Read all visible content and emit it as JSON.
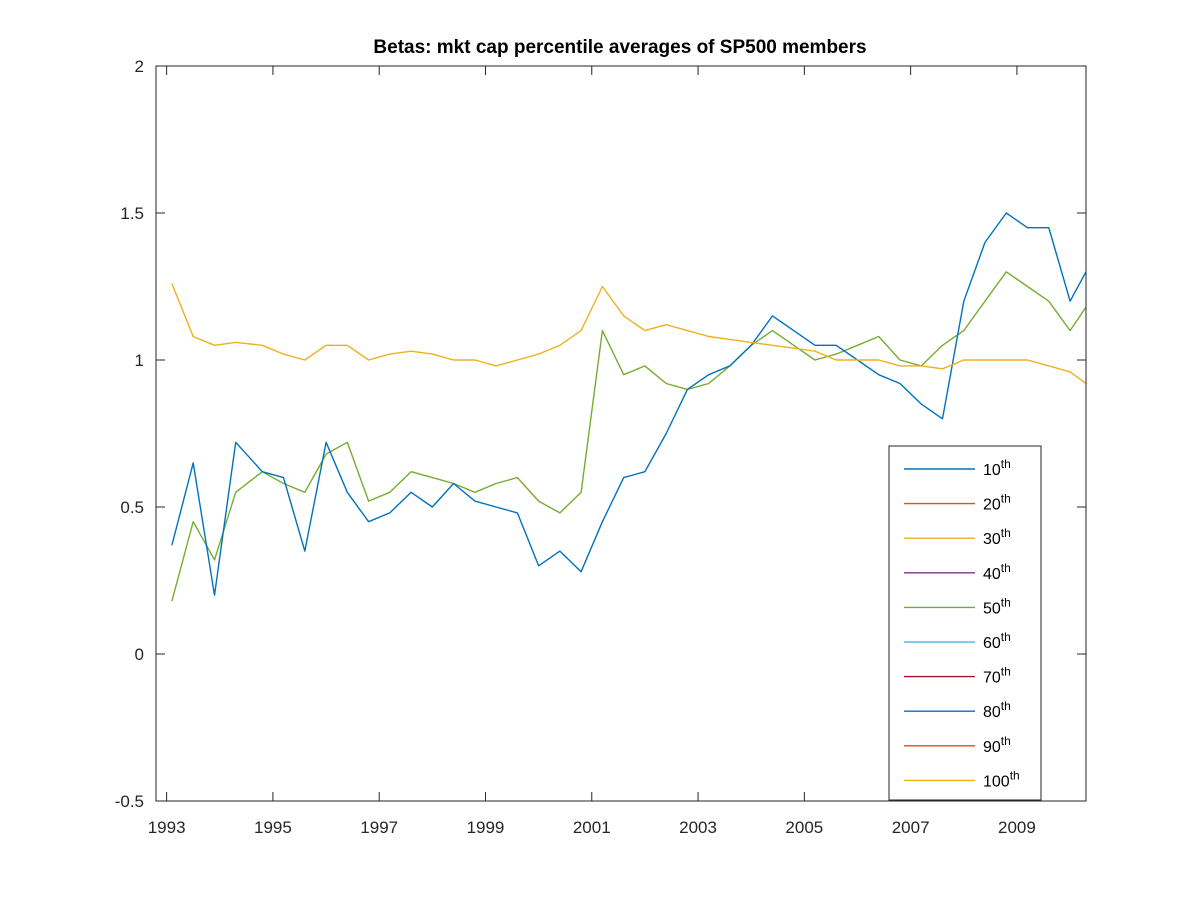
{
  "chart_data": {
    "type": "line",
    "title": "Betas: mkt cap percentile averages of SP500 members",
    "xlabel": "",
    "ylabel": "",
    "xlim": [
      1992.8,
      2010.3
    ],
    "ylim": [
      -0.5,
      2
    ],
    "x_ticks": [
      1993,
      1995,
      1997,
      1999,
      2001,
      2003,
      2005,
      2007,
      2009
    ],
    "x_tick_labels": [
      "1993",
      "1995",
      "1997",
      "1999",
      "2001",
      "2003",
      "2005",
      "2007",
      "2009"
    ],
    "y_ticks": [
      -0.5,
      0,
      0.5,
      1,
      1.5,
      2
    ],
    "y_tick_labels": [
      "-0.5",
      "0",
      "0.5",
      "1",
      "1.5",
      "2"
    ],
    "grid": false,
    "legend_position": "bottom-right",
    "legend_suffix": "th",
    "x_sample_points": [
      1993.1,
      1993.5,
      1993.9,
      1994.3,
      1994.8,
      1995.2,
      1995.6,
      1996.0,
      1996.4,
      1996.8,
      1997.2,
      1997.6,
      1998.0,
      1998.4,
      1998.8,
      1999.2,
      1999.6,
      2000.0,
      2000.4,
      2000.8,
      2001.2,
      2001.6,
      2002.0,
      2002.4,
      2002.8,
      2003.2,
      2003.6,
      2004.0,
      2004.4,
      2004.8,
      2005.2,
      2005.6,
      2006.0,
      2006.4,
      2006.8,
      2007.2,
      2007.6,
      2008.0,
      2008.4,
      2008.8,
      2009.2,
      2009.6,
      2010.0,
      2010.3
    ],
    "series": [
      {
        "name": "10",
        "color": "#0072BD",
        "values": []
      },
      {
        "name": "20",
        "color": "#D95319",
        "values": []
      },
      {
        "name": "30",
        "color": "#EDB120",
        "values": []
      },
      {
        "name": "40",
        "color": "#7E2F8E",
        "values": []
      },
      {
        "name": "50",
        "color": "#77AC30",
        "values": [
          0.18,
          0.45,
          0.32,
          0.55,
          0.62,
          0.58,
          0.55,
          0.68,
          0.72,
          0.52,
          0.55,
          0.62,
          0.6,
          0.58,
          0.55,
          0.58,
          0.6,
          0.52,
          0.48,
          0.55,
          1.1,
          0.95,
          0.98,
          0.92,
          0.9,
          0.92,
          0.98,
          1.05,
          1.1,
          1.05,
          1.0,
          1.02,
          1.05,
          1.08,
          1.0,
          0.98,
          1.05,
          1.1,
          1.2,
          1.3,
          1.25,
          1.2,
          1.1,
          1.18
        ]
      },
      {
        "name": "60",
        "color": "#4DBEEE",
        "values": []
      },
      {
        "name": "70",
        "color": "#A2142F",
        "values": []
      },
      {
        "name": "80",
        "color": "#0072BD",
        "values": [
          0.37,
          0.65,
          0.2,
          0.72,
          0.62,
          0.6,
          0.35,
          0.72,
          0.55,
          0.45,
          0.48,
          0.55,
          0.5,
          0.58,
          0.52,
          0.5,
          0.48,
          0.3,
          0.35,
          0.28,
          0.45,
          0.6,
          0.62,
          0.75,
          0.9,
          0.95,
          0.98,
          1.05,
          1.15,
          1.1,
          1.05,
          1.05,
          1.0,
          0.95,
          0.92,
          0.85,
          0.8,
          1.2,
          1.4,
          1.5,
          1.45,
          1.45,
          1.2,
          1.3
        ]
      },
      {
        "name": "90",
        "color": "#D95319",
        "values": []
      },
      {
        "name": "100",
        "color": "#EDB120",
        "values": [
          1.26,
          1.08,
          1.05,
          1.06,
          1.05,
          1.02,
          1.0,
          1.05,
          1.05,
          1.0,
          1.02,
          1.03,
          1.02,
          1.0,
          1.0,
          0.98,
          1.0,
          1.02,
          1.05,
          1.1,
          1.25,
          1.15,
          1.1,
          1.12,
          1.1,
          1.08,
          1.07,
          1.06,
          1.05,
          1.04,
          1.03,
          1.0,
          1.0,
          1.0,
          0.98,
          0.98,
          0.97,
          1.0,
          1.0,
          1.0,
          1.0,
          0.98,
          0.96,
          0.92
        ]
      }
    ]
  }
}
